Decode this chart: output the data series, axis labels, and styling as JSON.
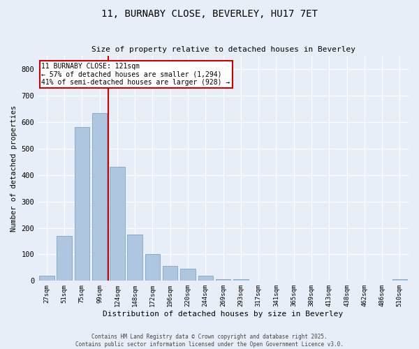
{
  "title_line1": "11, BURNABY CLOSE, BEVERLEY, HU17 7ET",
  "title_line2": "Size of property relative to detached houses in Beverley",
  "xlabel": "Distribution of detached houses by size in Beverley",
  "ylabel": "Number of detached properties",
  "categories": [
    "27sqm",
    "51sqm",
    "75sqm",
    "99sqm",
    "124sqm",
    "148sqm",
    "172sqm",
    "196sqm",
    "220sqm",
    "244sqm",
    "269sqm",
    "293sqm",
    "317sqm",
    "341sqm",
    "365sqm",
    "389sqm",
    "413sqm",
    "438sqm",
    "462sqm",
    "486sqm",
    "510sqm"
  ],
  "values": [
    20,
    170,
    580,
    635,
    430,
    175,
    100,
    55,
    45,
    20,
    7,
    7,
    0,
    0,
    0,
    0,
    0,
    0,
    0,
    0,
    7
  ],
  "bar_color": "#aec6df",
  "bar_edge_color": "#85aecb",
  "background_color": "#e8eef7",
  "grid_color": "#ffffff",
  "vline_color": "#cc0000",
  "annotation_text": "11 BURNABY CLOSE: 121sqm\n← 57% of detached houses are smaller (1,294)\n41% of semi-detached houses are larger (928) →",
  "annotation_box_facecolor": "#ffffff",
  "annotation_box_edgecolor": "#cc0000",
  "ylim": [
    0,
    850
  ],
  "yticks": [
    0,
    100,
    200,
    300,
    400,
    500,
    600,
    700,
    800
  ],
  "footer_line1": "Contains HM Land Registry data © Crown copyright and database right 2025.",
  "footer_line2": "Contains public sector information licensed under the Open Government Licence v3.0."
}
